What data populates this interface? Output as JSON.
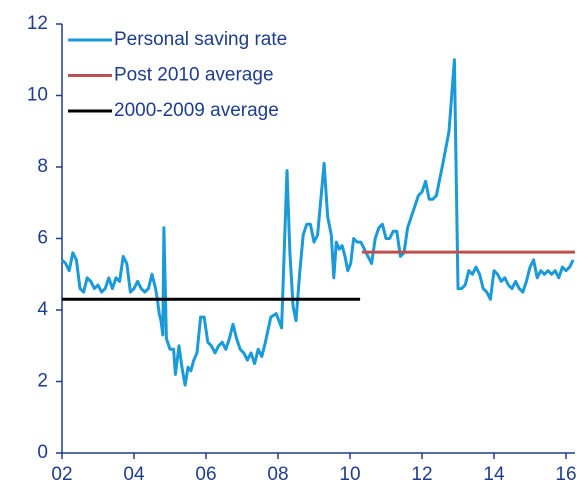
{
  "chart_data": {
    "type": "line",
    "xlim": [
      2,
      16.25
    ],
    "xticks": [
      {
        "value": 2,
        "label": "02"
      },
      {
        "value": 4,
        "label": "04"
      },
      {
        "value": 6,
        "label": "06"
      },
      {
        "value": 8,
        "label": "08"
      },
      {
        "value": 10,
        "label": "10"
      },
      {
        "value": 12,
        "label": "12"
      },
      {
        "value": 14,
        "label": "14"
      },
      {
        "value": 16,
        "label": "16"
      }
    ],
    "ylim": [
      0,
      12
    ],
    "yticks": [
      0,
      2,
      4,
      6,
      8,
      10,
      12
    ],
    "legend": "upper left",
    "series": [
      {
        "name": "Personal saving rate",
        "color": "#1a9ad8",
        "x": [
          2.0,
          2.1,
          2.2,
          2.3,
          2.4,
          2.5,
          2.6,
          2.7,
          2.8,
          2.9,
          3.0,
          3.1,
          3.2,
          3.3,
          3.4,
          3.5,
          3.6,
          3.7,
          3.8,
          3.9,
          4.0,
          4.1,
          4.2,
          4.3,
          4.4,
          4.5,
          4.6,
          4.65,
          4.7,
          4.75,
          4.8,
          4.83,
          4.9,
          5.0,
          5.1,
          5.15,
          5.25,
          5.33,
          5.42,
          5.5,
          5.58,
          5.66,
          5.75,
          5.85,
          5.95,
          6.05,
          6.15,
          6.25,
          6.35,
          6.45,
          6.55,
          6.65,
          6.75,
          6.85,
          6.95,
          7.05,
          7.15,
          7.25,
          7.35,
          7.45,
          7.55,
          7.65,
          7.8,
          7.95,
          8.1,
          8.25,
          8.33,
          8.42,
          8.5,
          8.6,
          8.7,
          8.8,
          8.9,
          9.0,
          9.1,
          9.28,
          9.38,
          9.48,
          9.55,
          9.62,
          9.7,
          9.78,
          9.86,
          9.94,
          10.02,
          10.1,
          10.2,
          10.3,
          10.4,
          10.5,
          10.6,
          10.7,
          10.8,
          10.9,
          11.0,
          11.1,
          11.2,
          11.3,
          11.4,
          11.5,
          11.6,
          11.7,
          11.8,
          11.9,
          12.0,
          12.1,
          12.2,
          12.3,
          12.4,
          12.6,
          12.75,
          12.9,
          13.0,
          13.1,
          13.2,
          13.3,
          13.4,
          13.5,
          13.6,
          13.7,
          13.8,
          13.9,
          14.0,
          14.1,
          14.2,
          14.3,
          14.4,
          14.5,
          14.6,
          14.7,
          14.8,
          14.9,
          15.0,
          15.1,
          15.2,
          15.3,
          15.4,
          15.5,
          15.6,
          15.7,
          15.8,
          15.9,
          16.0,
          16.1,
          16.2
        ],
        "values": [
          5.4,
          5.3,
          5.1,
          5.6,
          5.4,
          4.6,
          4.5,
          4.9,
          4.8,
          4.6,
          4.7,
          4.5,
          4.6,
          4.9,
          4.6,
          4.9,
          4.8,
          5.5,
          5.3,
          4.5,
          4.6,
          4.8,
          4.6,
          4.5,
          4.6,
          5.0,
          4.6,
          4.3,
          3.9,
          3.7,
          3.3,
          6.3,
          3.2,
          2.9,
          2.9,
          2.2,
          3.0,
          2.4,
          1.9,
          2.4,
          2.3,
          2.6,
          2.8,
          3.8,
          3.8,
          3.1,
          3.0,
          2.8,
          3.0,
          3.1,
          2.9,
          3.2,
          3.6,
          3.2,
          2.9,
          2.8,
          2.6,
          2.8,
          2.5,
          2.9,
          2.7,
          3.1,
          3.8,
          3.9,
          3.5,
          7.9,
          5.6,
          4.1,
          3.7,
          5.0,
          6.1,
          6.4,
          6.4,
          5.9,
          6.1,
          8.1,
          6.6,
          6.1,
          4.9,
          5.9,
          5.7,
          5.8,
          5.5,
          5.1,
          5.3,
          6.0,
          5.9,
          5.9,
          5.7,
          5.5,
          5.3,
          6.0,
          6.3,
          6.4,
          6.0,
          6.0,
          6.2,
          6.2,
          5.5,
          5.6,
          6.3,
          6.6,
          6.9,
          7.2,
          7.3,
          7.6,
          7.1,
          7.1,
          7.2,
          8.2,
          9.0,
          11.0,
          4.6,
          4.6,
          4.7,
          5.1,
          5.0,
          5.2,
          5.0,
          4.6,
          4.5,
          4.3,
          5.1,
          5.0,
          4.8,
          4.9,
          4.7,
          4.6,
          4.8,
          4.6,
          4.5,
          4.8,
          5.2,
          5.4,
          4.9,
          5.1,
          5.0,
          5.1,
          5.0,
          5.1,
          4.9,
          5.2,
          5.1,
          5.2,
          5.4
        ]
      },
      {
        "name": "Post 2010 average",
        "color": "#c0504d",
        "x": [
          10.33,
          16.25
        ],
        "values": [
          5.62,
          5.62
        ]
      },
      {
        "name": "2000-2009 average",
        "color": "#000000",
        "x": [
          2,
          10.28
        ],
        "values": [
          4.3,
          4.3
        ]
      }
    ]
  }
}
